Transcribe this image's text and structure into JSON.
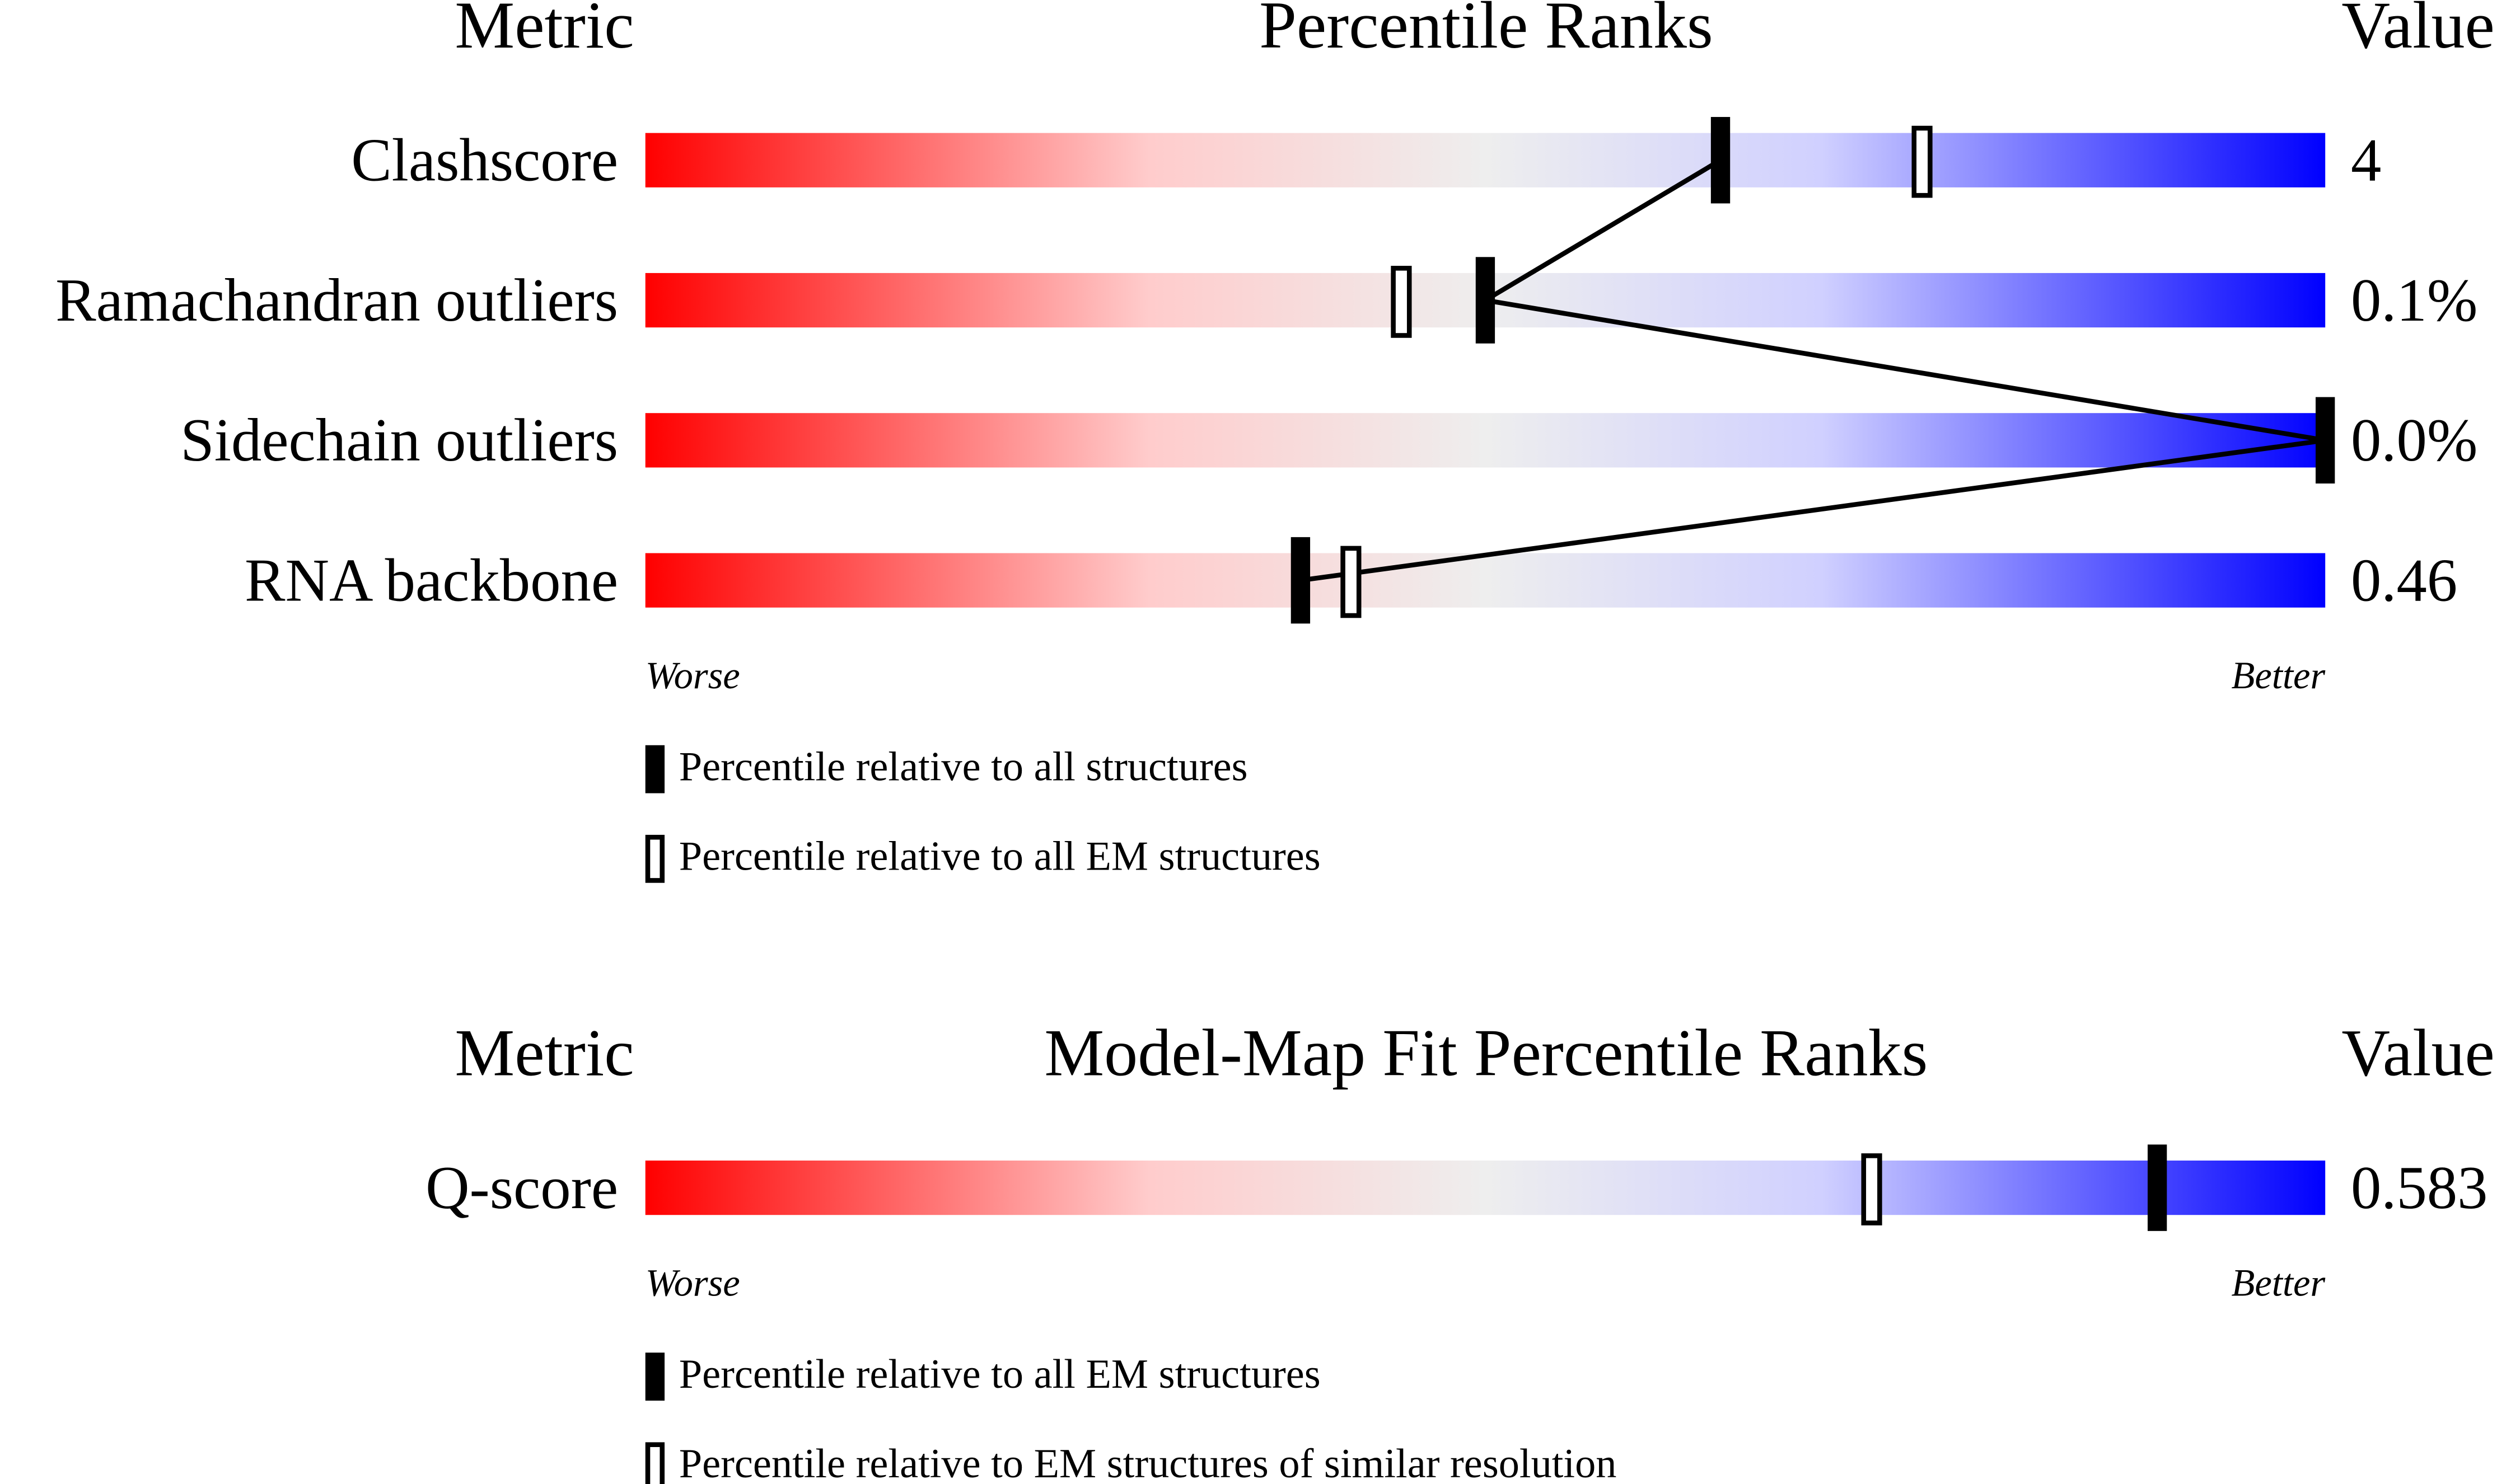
{
  "chart_data": [
    {
      "type": "percentile",
      "left_header": "Metric",
      "title": "Percentile Ranks",
      "right_header": "Value",
      "categories": [
        "Clashscore",
        "Ramachandran outliers",
        "Sidechain outliers",
        "RNA backbone"
      ],
      "metric_values": [
        "4",
        "0.1%",
        "0.0%",
        "0.46"
      ],
      "xlim": [
        0,
        100
      ],
      "low_label": "Worse",
      "high_label": "Better",
      "connect_first_series": true,
      "series": [
        {
          "name": "Percentile relative to all structures",
          "color": "#000000",
          "marker": "filled",
          "values": [
            64,
            50,
            100,
            39
          ]
        },
        {
          "name": "Percentile relative to all EM structures",
          "color": "#000000",
          "marker": "hollow",
          "values": [
            76,
            45,
            null,
            42
          ]
        }
      ]
    },
    {
      "type": "percentile",
      "left_header": "Metric",
      "title": "Model-Map Fit Percentile Ranks",
      "right_header": "Value",
      "categories": [
        "Q-score"
      ],
      "metric_values": [
        "0.583"
      ],
      "xlim": [
        0,
        100
      ],
      "low_label": "Worse",
      "high_label": "Better",
      "connect_first_series": false,
      "series": [
        {
          "name": "Percentile relative to all EM structures",
          "color": "#000000",
          "marker": "filled",
          "values": [
            90
          ]
        },
        {
          "name": "Percentile relative to EM structures of similar resolution",
          "color": "#000000",
          "marker": "hollow",
          "values": [
            73
          ]
        }
      ]
    }
  ]
}
